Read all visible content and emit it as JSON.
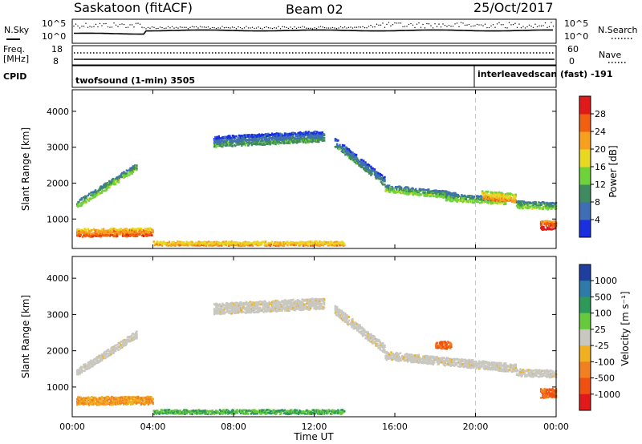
{
  "header": {
    "station": "Saskatoon (fitACF)",
    "beam": "Beam 02",
    "date": "25/Oct/2017"
  },
  "noise_panel": {
    "left_label": "N.Sky",
    "right_label": "N.Search",
    "left_ticks": [
      "10^5",
      "10^0"
    ],
    "right_ticks": [
      "10^5",
      "10^0"
    ]
  },
  "freq_panel": {
    "left_label_1": "Freq.",
    "left_label_2": "[MHz]",
    "left_ticks": [
      "18",
      "8"
    ],
    "right_label": "Nave",
    "right_ticks": [
      "60",
      "0"
    ]
  },
  "cpid_panel": {
    "label": "CPID",
    "mode_1": "twofsound (1-min) 3505",
    "mode_2": "interleavedscan (fast) -191"
  },
  "power_panel": {
    "ylabel": "Slant Range [km]",
    "yticks": [
      "1000",
      "2000",
      "3000",
      "4000"
    ],
    "colorbar_label": "Power [dB]",
    "colorbar_ticks": [
      "4",
      "8",
      "12",
      "16",
      "20",
      "24",
      "28"
    ],
    "colors": [
      "#1a2fe0",
      "#3f6eb6",
      "#3f8a5e",
      "#6ed23a",
      "#e8d820",
      "#f7a020",
      "#f06010",
      "#e01a1a"
    ]
  },
  "velocity_panel": {
    "ylabel": "Slant Range [km]",
    "yticks": [
      "1000",
      "2000",
      "3000",
      "4000"
    ],
    "colorbar_label": "Velocity [m s⁻¹]",
    "colorbar_ticks": [
      "1000",
      "500",
      "100",
      "25",
      "-25",
      "-100",
      "-500",
      "-1000"
    ],
    "colors": [
      "#1f3fa0",
      "#2e7aa8",
      "#2e9a5a",
      "#67c93c",
      "#c8c8c0",
      "#f0b020",
      "#f08020",
      "#f05010",
      "#e01a1a"
    ]
  },
  "xaxis": {
    "label": "Time UT",
    "ticks": [
      "00:00",
      "04:00",
      "08:00",
      "12:00",
      "16:00",
      "20:00",
      "00:00"
    ]
  },
  "chart_data": {
    "type": "heatmap",
    "xlabel": "Time UT",
    "ylabel": "Slant Range [km]",
    "xlim_hours": [
      0,
      24
    ],
    "ylim_km": [
      180,
      4600
    ],
    "mode_change_hour": 20.0,
    "power_regions": [
      {
        "t": [
          0.2,
          3.2
        ],
        "r_start": [
          1300,
          2350
        ],
        "width_km": 200,
        "level": 10
      },
      {
        "t": [
          0.2,
          4.0
        ],
        "r_start": [
          500,
          520
        ],
        "width_km": 220,
        "level": 22
      },
      {
        "t": [
          4.0,
          13.5
        ],
        "r_start": [
          250,
          250
        ],
        "width_km": 120,
        "level": 20
      },
      {
        "t": [
          7.0,
          12.5
        ],
        "r_start": [
          3000,
          3150
        ],
        "width_km": 300,
        "level": 8
      },
      {
        "t": [
          13.0,
          15.5
        ],
        "r_start": [
          3000,
          1900
        ],
        "width_km": 250,
        "level": 8
      },
      {
        "t": [
          15.5,
          19.0
        ],
        "r_start": [
          1750,
          1550
        ],
        "width_km": 200,
        "level": 10
      },
      {
        "t": [
          18.5,
          21.5
        ],
        "r_start": [
          1500,
          1400
        ],
        "width_km": 200,
        "level": 12
      },
      {
        "t": [
          20.3,
          22.0
        ],
        "r_start": [
          1550,
          1450
        ],
        "width_km": 250,
        "level": 18
      },
      {
        "t": [
          22.0,
          24.0
        ],
        "r_start": [
          1300,
          1250
        ],
        "width_km": 200,
        "level": 12
      },
      {
        "t": [
          23.2,
          24.0
        ],
        "r_start": [
          700,
          700
        ],
        "width_km": 250,
        "level": 28
      }
    ],
    "velocity_regions": [
      {
        "t": [
          0.2,
          3.2
        ],
        "r_start": [
          1300,
          2350
        ],
        "width_km": 200,
        "velocity": 0
      },
      {
        "t": [
          0.2,
          4.0
        ],
        "r_start": [
          500,
          520
        ],
        "width_km": 220,
        "velocity": -100
      },
      {
        "t": [
          4.0,
          13.5
        ],
        "r_start": [
          250,
          250
        ],
        "width_km": 120,
        "velocity": 60
      },
      {
        "t": [
          7.0,
          12.5
        ],
        "r_start": [
          3000,
          3150
        ],
        "width_km": 300,
        "velocity": 0
      },
      {
        "t": [
          13.0,
          15.5
        ],
        "r_start": [
          3000,
          1900
        ],
        "width_km": 250,
        "velocity": 0
      },
      {
        "t": [
          15.5,
          22.0
        ],
        "r_start": [
          1750,
          1400
        ],
        "width_km": 220,
        "velocity": 0
      },
      {
        "t": [
          22.0,
          24.0
        ],
        "r_start": [
          1300,
          1250
        ],
        "width_km": 200,
        "velocity": 0
      },
      {
        "t": [
          18.0,
          18.8
        ],
        "r_start": [
          2050,
          2050
        ],
        "width_km": 200,
        "velocity": -300
      },
      {
        "t": [
          23.2,
          24.0
        ],
        "r_start": [
          700,
          700
        ],
        "width_km": 250,
        "velocity": -300
      }
    ]
  }
}
